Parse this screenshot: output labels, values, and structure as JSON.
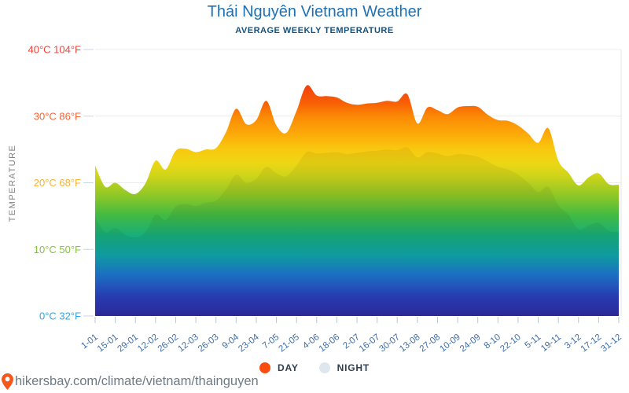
{
  "header": {
    "title": "Thái Nguyên Vietnam Weather",
    "subtitle": "AVERAGE WEEKLY TEMPERATURE"
  },
  "legend": {
    "day_label": "DAY",
    "night_label": "NIGHT",
    "day_color": "#fa4d12",
    "night_color": "#dfe7ee"
  },
  "footer": {
    "url": "hikersbay.com/climate/vietnam/thainguyen",
    "pin_color": "#f4581f"
  },
  "chart_data": {
    "type": "area",
    "title": "Thái Nguyên Vietnam Weather",
    "subtitle": "AVERAGE WEEKLY TEMPERATURE",
    "ylabel": "TEMPERATURE",
    "ylim": [
      0,
      40
    ],
    "grid": true,
    "legend_position": "bottom",
    "x_tick_labels": [
      "1-01",
      "15-01",
      "29-01",
      "12-02",
      "26-02",
      "12-03",
      "26-03",
      "9-04",
      "23-04",
      "7-05",
      "21-05",
      "4-06",
      "18-06",
      "2-07",
      "16-07",
      "30-07",
      "13-08",
      "27-08",
      "10-09",
      "24-09",
      "8-10",
      "22-10",
      "5-11",
      "19-11",
      "3-12",
      "17-12",
      "31-12"
    ],
    "x_label_color": "#3f6da6",
    "y_ticks": [
      {
        "label": "40°C 104°F",
        "value": 40,
        "color": "#f4403a"
      },
      {
        "label": "30°C 86°F",
        "value": 30,
        "color": "#f96132"
      },
      {
        "label": "20°C 68°F",
        "value": 20,
        "color": "#f9b233"
      },
      {
        "label": "10°C 50°F",
        "value": 10,
        "color": "#84c43c"
      },
      {
        "label": "0°C 32°F",
        "value": 0,
        "color": "#35a3e3"
      }
    ],
    "series": [
      {
        "name": "DAY",
        "unit": "°C",
        "values": [
          22.6,
          19.4,
          20.0,
          18.9,
          18.3,
          19.9,
          23.3,
          22.0,
          24.8,
          25.1,
          24.6,
          25.0,
          25.2,
          27.6,
          31.1,
          28.8,
          29.4,
          32.3,
          28.6,
          27.5,
          30.8,
          34.6,
          33.1,
          33.0,
          32.8,
          32.0,
          31.7,
          31.9,
          32.0,
          32.3,
          32.2,
          33.3,
          28.9,
          31.3,
          30.9,
          30.3,
          31.3,
          31.5,
          31.4,
          30.2,
          29.4,
          29.3,
          28.6,
          27.4,
          26.0,
          28.2,
          23.3,
          21.5,
          19.6,
          20.8,
          21.4,
          19.8,
          19.7
        ]
      },
      {
        "name": "NIGHT",
        "unit": "°C",
        "values": [
          14.8,
          12.6,
          13.2,
          12.2,
          11.8,
          12.6,
          15.2,
          14.4,
          16.4,
          16.8,
          16.5,
          17.0,
          17.3,
          19.0,
          21.2,
          20.0,
          20.6,
          22.4,
          21.4,
          21.0,
          22.6,
          24.6,
          24.4,
          24.5,
          24.6,
          24.3,
          24.5,
          24.7,
          24.8,
          25.0,
          24.9,
          25.3,
          23.8,
          24.6,
          24.4,
          24.0,
          24.3,
          24.2,
          23.9,
          23.2,
          22.4,
          22.0,
          21.2,
          20.0,
          18.6,
          19.4,
          16.6,
          15.2,
          13.0,
          13.6,
          14.0,
          12.8,
          12.6
        ]
      }
    ],
    "gradient_stops": [
      {
        "t": 40,
        "color": "#ee1111"
      },
      {
        "t": 35,
        "color": "#f23c0e"
      },
      {
        "t": 32,
        "color": "#f85f05"
      },
      {
        "t": 30,
        "color": "#fb8905"
      },
      {
        "t": 27,
        "color": "#fcae0a"
      },
      {
        "t": 25,
        "color": "#f8c90f"
      },
      {
        "t": 23,
        "color": "#eed614"
      },
      {
        "t": 21,
        "color": "#cdd51a"
      },
      {
        "t": 20,
        "color": "#b8cf1e"
      },
      {
        "t": 18,
        "color": "#8cc726"
      },
      {
        "t": 15,
        "color": "#3fba44"
      },
      {
        "t": 12,
        "color": "#17ad7c"
      },
      {
        "t": 9,
        "color": "#10a3ab"
      },
      {
        "t": 6,
        "color": "#1e73cf"
      },
      {
        "t": 3,
        "color": "#2a41bb"
      },
      {
        "t": 0,
        "color": "#2e2aa2"
      }
    ]
  }
}
